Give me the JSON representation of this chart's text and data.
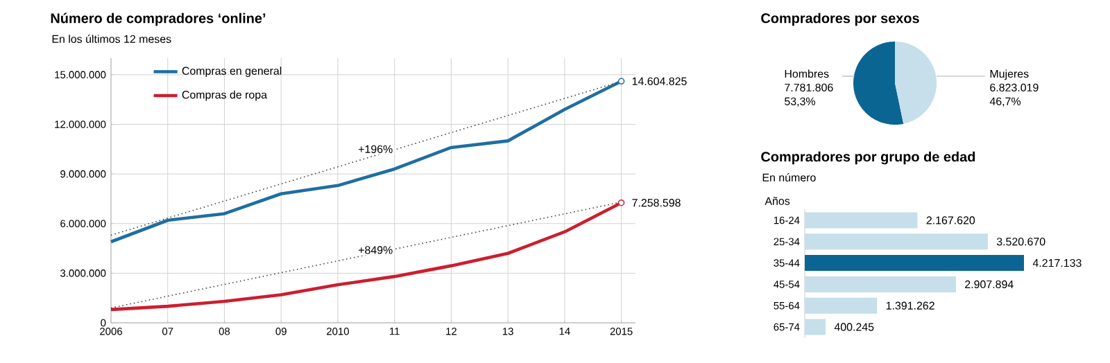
{
  "chart_data": [
    {
      "type": "line",
      "title": "Número de compradores ‘online’",
      "subtitle": "En los últimos 12 meses",
      "categories": [
        "2006",
        "07",
        "08",
        "09",
        "2010",
        "11",
        "12",
        "13",
        "14",
        "2015"
      ],
      "series": [
        {
          "name": "Compras en general",
          "color": "#1f6ea1",
          "values": [
            4900000,
            6200000,
            6600000,
            7800000,
            8300000,
            9300000,
            10600000,
            11000000,
            12900000,
            14604825
          ],
          "value_labels": [
            null,
            null,
            null,
            null,
            null,
            null,
            null,
            null,
            null,
            "14.604.825"
          ]
        },
        {
          "name": "Compras de ropa",
          "color": "#cc1e2f",
          "values": [
            800000,
            1000000,
            1300000,
            1700000,
            2300000,
            2800000,
            3450000,
            4200000,
            5500000,
            7258598
          ],
          "value_labels": [
            null,
            null,
            null,
            null,
            null,
            null,
            null,
            null,
            null,
            "7.258.598"
          ]
        },
        {
          "type": "line",
          "line_style": "dotted",
          "color": "#444444",
          "values": [
            5300000,
            null,
            null,
            null,
            null,
            null,
            null,
            null,
            null,
            14600000
          ]
        },
        {
          "type": "line",
          "line_style": "dotted",
          "color": "#444444",
          "values": [
            900000,
            null,
            null,
            null,
            null,
            null,
            null,
            null,
            null,
            7300000
          ]
        }
      ],
      "annotations": [
        {
          "text": "+196%",
          "x": "11",
          "y": 10500000
        },
        {
          "text": "+849%",
          "x": "11",
          "y": 4400000
        }
      ],
      "ylim": [
        0,
        16000000
      ],
      "yticks": [
        {
          "value": 0,
          "label": "0"
        },
        {
          "value": 3000000,
          "label": "3.000.000"
        },
        {
          "value": 6000000,
          "label": "6.000.000"
        },
        {
          "value": 9000000,
          "label": "9.000.000"
        },
        {
          "value": 12000000,
          "label": "12.000.000"
        },
        {
          "value": 15000000,
          "label": "15.000.000"
        }
      ],
      "grid": true,
      "legend": "top left"
    },
    {
      "type": "pie",
      "title": "Compradores por sexos",
      "categories": [
        "Hombres",
        "Mujeres"
      ],
      "values": [
        7781806,
        6823019
      ],
      "colors": [
        "#0b6593",
        "#c6dfeb"
      ],
      "value_labels": [
        "7.781.806",
        "6.823.019"
      ],
      "annotations": [
        "53,3%",
        "46,7%"
      ]
    },
    {
      "type": "bar",
      "orientation": "horizontal",
      "title": "Compradores por grupo de edad",
      "subtitle": "En número",
      "ylabel": "Años",
      "categories": [
        "16-24",
        "25-34",
        "35-44",
        "45-54",
        "55-64",
        "65-74"
      ],
      "values": [
        2167620,
        3520670,
        4217133,
        2907894,
        1391262,
        400245
      ],
      "colors": [
        "#c6dfeb",
        "#c6dfeb",
        "#0b6593",
        "#c6dfeb",
        "#c6dfeb",
        "#c6dfeb"
      ],
      "value_labels": [
        "2.167.620",
        "3.520.670",
        "4.217.133",
        "2.907.894",
        "1.391.262",
        "400.245"
      ],
      "tick_labels": "y"
    }
  ]
}
